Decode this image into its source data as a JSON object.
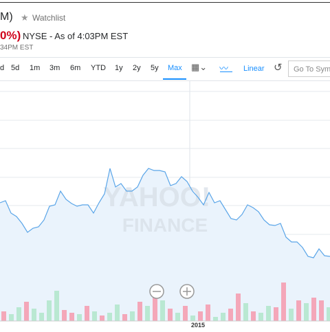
{
  "header": {
    "ticker_fragment": "M)",
    "watchlist": "Watchlist",
    "change_fragment": "0%)",
    "exchange": "NYSE - As of 4:03PM EST",
    "time_fragment": "34PM EST"
  },
  "toolbar": {
    "ranges": [
      "d",
      "5d",
      "1m",
      "3m",
      "6m",
      "YTD",
      "1y",
      "2y",
      "5y",
      "Max"
    ],
    "active": "Max",
    "scale": "Linear",
    "search_placeholder": "Go To Symb"
  },
  "chart": {
    "watermark": [
      "YAHOO!",
      "FINANCE"
    ],
    "x_label": "2015",
    "price": [
      175,
      178,
      160,
      155,
      145,
      132,
      138,
      140,
      150,
      170,
      172,
      192,
      180,
      174,
      170,
      172,
      172,
      160,
      175,
      188,
      225,
      198,
      203,
      192,
      192,
      198,
      215,
      225,
      222,
      222,
      220,
      200,
      203,
      213,
      206,
      192,
      183,
      172,
      190,
      175,
      178,
      165,
      152,
      150,
      158,
      172,
      168,
      162,
      150,
      143,
      142,
      145,
      125,
      118,
      118,
      110,
      97,
      95,
      108,
      98,
      97
    ],
    "volume": [
      14,
      10,
      20,
      28,
      18,
      12,
      30,
      44,
      16,
      12,
      10,
      22,
      14,
      8,
      12,
      24,
      10,
      14,
      28,
      22,
      40,
      30,
      18,
      12,
      22,
      8,
      14,
      24,
      6,
      12,
      18,
      40,
      26,
      14,
      12,
      22,
      20,
      56,
      18,
      30,
      26,
      34,
      30,
      20
    ],
    "volume_colors": [
      "#f4a7b9",
      "#b9e8d2",
      "#b9e8d2",
      "#f4a7b9",
      "#b9e8d2",
      "#b9e8d2",
      "#b9e8d2",
      "#b9e8d2",
      "#f4a7b9",
      "#f4a7b9",
      "#b9e8d2",
      "#f4a7b9",
      "#b9e8d2",
      "#f4a7b9",
      "#b9e8d2",
      "#b9e8d2",
      "#f4a7b9",
      "#b9e8d2",
      "#f4a7b9",
      "#b9e8d2",
      "#f4a7b9",
      "#b9e8d2",
      "#f4a7b9",
      "#b9e8d2",
      "#f4a7b9",
      "#b9e8d2",
      "#f4a7b9",
      "#f4a7b9",
      "#b9e8d2",
      "#b9e8d2",
      "#f4a7b9",
      "#f4a7b9",
      "#b9e8d2",
      "#f4a7b9",
      "#b9e8d2",
      "#b9e8d2",
      "#f4a7b9",
      "#f4a7b9",
      "#b9e8d2",
      "#f4a7b9",
      "#b9e8d2",
      "#f4a7b9",
      "#f4a7b9",
      "#b9e8d2"
    ]
  }
}
